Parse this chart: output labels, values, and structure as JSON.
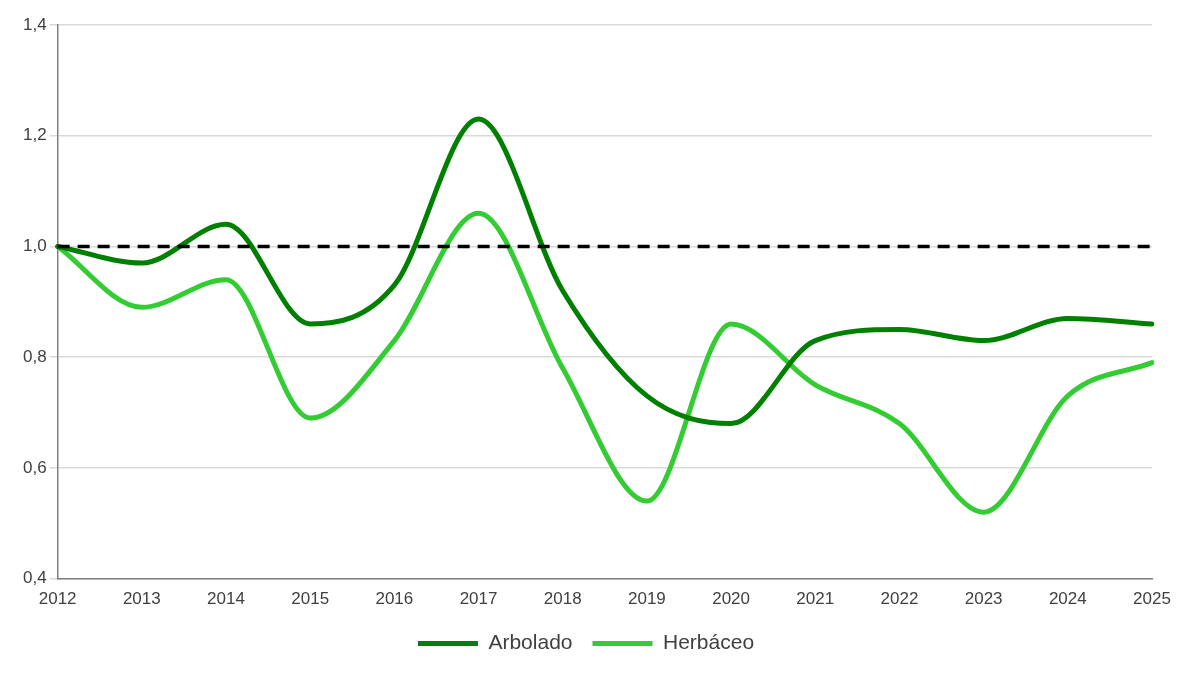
{
  "chart_data": {
    "type": "line",
    "categories": [
      "2012",
      "2013",
      "2014",
      "2015",
      "2016",
      "2017",
      "2018",
      "2019",
      "2020",
      "2021",
      "2022",
      "2023",
      "2024",
      "2025"
    ],
    "series": [
      {
        "name": "Arbolado",
        "color": "#008000",
        "values": [
          1.0,
          0.97,
          1.04,
          0.86,
          0.93,
          1.23,
          0.92,
          0.73,
          0.68,
          0.83,
          0.85,
          0.83,
          0.87,
          0.86
        ]
      },
      {
        "name": "Herbáceo",
        "color": "#33cc33",
        "values": [
          1.0,
          0.89,
          0.94,
          0.69,
          0.83,
          1.06,
          0.78,
          0.54,
          0.86,
          0.75,
          0.68,
          0.52,
          0.73,
          0.79
        ]
      }
    ],
    "ylim": [
      0.4,
      1.4
    ],
    "yticks": [
      {
        "value": 0.4,
        "label": "0,4"
      },
      {
        "value": 0.6,
        "label": "0,6"
      },
      {
        "value": 0.8,
        "label": "0,8"
      },
      {
        "value": 1.0,
        "label": "1,0"
      },
      {
        "value": 1.2,
        "label": "1,2"
      },
      {
        "value": 1.4,
        "label": "1,4"
      }
    ],
    "ref_lines": [
      {
        "axis": "y",
        "value": 1.0,
        "color": "#000000",
        "line_style": "dashed"
      }
    ],
    "grid": "y",
    "legend": "bottom",
    "marker": "none",
    "line_style": "solid"
  }
}
